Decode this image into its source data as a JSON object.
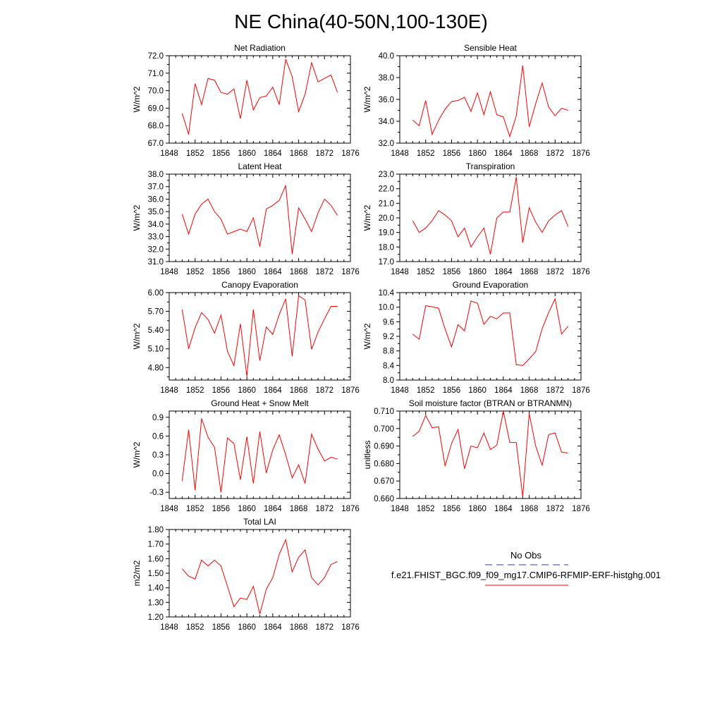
{
  "figure_title": "NE China(40-50N,100-130E)",
  "legend": {
    "obs_label": "No Obs",
    "obs_color": "#3a3a9a",
    "model_label": "f.e21.FHIST_BGC.f09_f09_mg17.CMIP6-RFMIP-ERF-histghg.001",
    "model_color": "#ff0000"
  },
  "chart_data": [
    {
      "type": "line",
      "title": "Net Radiation",
      "ylabel": "W/m^2",
      "xlim": [
        1848,
        1876
      ],
      "ylim": [
        67.0,
        72.0
      ],
      "xticks": [
        1848,
        1852,
        1856,
        1860,
        1864,
        1868,
        1872,
        1876
      ],
      "yticks": [
        "67.0",
        "68.0",
        "69.0",
        "70.0",
        "71.0",
        "72.0"
      ],
      "x": [
        1850,
        1851,
        1852,
        1853,
        1854,
        1855,
        1856,
        1857,
        1858,
        1859,
        1860,
        1861,
        1862,
        1863,
        1864,
        1865,
        1866,
        1867,
        1868,
        1869,
        1870,
        1871,
        1872,
        1873,
        1874
      ],
      "series": [
        {
          "name": "f.e21.FHIST_BGC.f09_f09_mg17.CMIP6-RFMIP-ERF-histghg.001",
          "values": [
            68.7,
            67.5,
            70.4,
            69.2,
            70.7,
            70.6,
            69.9,
            69.8,
            70.1,
            68.4,
            70.6,
            68.9,
            69.6,
            69.7,
            70.2,
            69.2,
            71.8,
            70.8,
            68.8,
            69.8,
            71.6,
            70.5,
            70.7,
            70.9,
            69.9
          ]
        }
      ]
    },
    {
      "type": "line",
      "title": "Sensible Heat",
      "ylabel": "W/m^2",
      "xlim": [
        1848,
        1876
      ],
      "ylim": [
        32.0,
        40.0
      ],
      "xticks": [
        1848,
        1852,
        1856,
        1860,
        1864,
        1868,
        1872,
        1876
      ],
      "yticks": [
        "32.0",
        "34.0",
        "36.0",
        "38.0",
        "40.0"
      ],
      "x": [
        1850,
        1851,
        1852,
        1853,
        1854,
        1855,
        1856,
        1857,
        1858,
        1859,
        1860,
        1861,
        1862,
        1863,
        1864,
        1865,
        1866,
        1867,
        1868,
        1869,
        1870,
        1871,
        1872,
        1873,
        1874
      ],
      "series": [
        {
          "name": "f.e21.FHIST_BGC.f09_f09_mg17.CMIP6-RFMIP-ERF-histghg.001",
          "values": [
            34.1,
            33.6,
            35.9,
            32.8,
            34.1,
            35.1,
            35.8,
            35.9,
            36.2,
            34.9,
            36.6,
            34.6,
            36.7,
            34.6,
            34.4,
            32.6,
            34.5,
            39.1,
            33.5,
            35.6,
            37.5,
            35.3,
            34.5,
            35.2,
            35.0
          ]
        }
      ]
    },
    {
      "type": "line",
      "title": "Latent Heat",
      "ylabel": "W/m^2",
      "xlim": [
        1848,
        1876
      ],
      "ylim": [
        31.0,
        38.0
      ],
      "xticks": [
        1848,
        1852,
        1856,
        1860,
        1864,
        1868,
        1872,
        1876
      ],
      "yticks": [
        "31.0",
        "32.0",
        "33.0",
        "34.0",
        "35.0",
        "36.0",
        "37.0",
        "38.0"
      ],
      "x": [
        1850,
        1851,
        1852,
        1853,
        1854,
        1855,
        1856,
        1857,
        1858,
        1859,
        1860,
        1861,
        1862,
        1863,
        1864,
        1865,
        1866,
        1867,
        1868,
        1869,
        1870,
        1871,
        1872,
        1873,
        1874
      ],
      "series": [
        {
          "name": "f.e21.FHIST_BGC.f09_f09_mg17.CMIP6-RFMIP-ERF-histghg.001",
          "values": [
            34.8,
            33.2,
            34.8,
            35.6,
            36.0,
            35.0,
            34.4,
            33.2,
            33.4,
            33.6,
            33.4,
            34.5,
            32.2,
            35.2,
            35.5,
            35.9,
            37.1,
            31.6,
            35.3,
            34.4,
            33.4,
            34.9,
            36.0,
            35.5,
            34.7
          ]
        }
      ]
    },
    {
      "type": "line",
      "title": "Transpiration",
      "ylabel": "W/m^2",
      "xlim": [
        1848,
        1876
      ],
      "ylim": [
        17.0,
        23.0
      ],
      "xticks": [
        1848,
        1852,
        1856,
        1860,
        1864,
        1868,
        1872,
        1876
      ],
      "yticks": [
        "17.0",
        "18.0",
        "19.0",
        "20.0",
        "21.0",
        "22.0",
        "23.0"
      ],
      "x": [
        1850,
        1851,
        1852,
        1853,
        1854,
        1855,
        1856,
        1857,
        1858,
        1859,
        1860,
        1861,
        1862,
        1863,
        1864,
        1865,
        1866,
        1867,
        1868,
        1869,
        1870,
        1871,
        1872,
        1873,
        1874
      ],
      "series": [
        {
          "name": "f.e21.FHIST_BGC.f09_f09_mg17.CMIP6-RFMIP-ERF-histghg.001",
          "values": [
            19.8,
            19.0,
            19.3,
            19.8,
            20.5,
            20.2,
            19.8,
            18.7,
            19.3,
            18.0,
            18.7,
            19.3,
            17.5,
            20.0,
            20.4,
            20.4,
            22.8,
            18.3,
            20.7,
            19.7,
            19.0,
            19.8,
            20.2,
            20.5,
            19.4
          ]
        }
      ]
    },
    {
      "type": "line",
      "title": "Canopy Evaporation",
      "ylabel": "W/m^2",
      "xlim": [
        1848,
        1876
      ],
      "ylim": [
        4.6,
        6.0
      ],
      "xticks": [
        1848,
        1852,
        1856,
        1860,
        1864,
        1868,
        1872,
        1876
      ],
      "yticks": [
        "4.80",
        "5.10",
        "5.40",
        "5.70",
        "6.00"
      ],
      "x": [
        1850,
        1851,
        1852,
        1853,
        1854,
        1855,
        1856,
        1857,
        1858,
        1859,
        1860,
        1861,
        1862,
        1863,
        1864,
        1865,
        1866,
        1867,
        1868,
        1869,
        1870,
        1871,
        1872,
        1873,
        1874
      ],
      "series": [
        {
          "name": "f.e21.FHIST_BGC.f09_f09_mg17.CMIP6-RFMIP-ERF-histghg.001",
          "values": [
            5.73,
            5.1,
            5.44,
            5.68,
            5.57,
            5.35,
            5.64,
            5.06,
            4.83,
            5.5,
            4.66,
            5.73,
            4.91,
            5.45,
            5.33,
            5.65,
            5.9,
            4.98,
            5.95,
            5.88,
            5.09,
            5.37,
            5.58,
            5.78,
            5.78
          ]
        }
      ]
    },
    {
      "type": "line",
      "title": "Ground Evaporation",
      "ylabel": "W/m^2",
      "xlim": [
        1848,
        1876
      ],
      "ylim": [
        8.0,
        10.4
      ],
      "xticks": [
        1848,
        1852,
        1856,
        1860,
        1864,
        1868,
        1872,
        1876
      ],
      "yticks": [
        "8.0",
        "8.4",
        "8.8",
        "9.2",
        "9.6",
        "10.0",
        "10.4"
      ],
      "x": [
        1850,
        1851,
        1852,
        1853,
        1854,
        1855,
        1856,
        1857,
        1858,
        1859,
        1860,
        1861,
        1862,
        1863,
        1864,
        1865,
        1866,
        1867,
        1868,
        1869,
        1870,
        1871,
        1872,
        1873,
        1874
      ],
      "series": [
        {
          "name": "f.e21.FHIST_BGC.f09_f09_mg17.CMIP6-RFMIP-ERF-histghg.001",
          "values": [
            9.26,
            9.12,
            10.04,
            10.01,
            9.97,
            9.4,
            8.91,
            9.52,
            9.35,
            10.17,
            10.11,
            9.53,
            9.75,
            9.68,
            9.84,
            9.84,
            8.42,
            8.4,
            8.58,
            8.78,
            9.41,
            9.85,
            10.23,
            9.26,
            9.48
          ]
        }
      ]
    },
    {
      "type": "line",
      "title": "Ground Heat + Snow Melt",
      "ylabel": "W/m^2",
      "xlim": [
        1848,
        1876
      ],
      "ylim": [
        -0.4,
        1.0
      ],
      "xticks": [
        1848,
        1852,
        1856,
        1860,
        1864,
        1868,
        1872,
        1876
      ],
      "yticks": [
        "-0.3",
        "0.0",
        "0.3",
        "0.6",
        "0.9"
      ],
      "x": [
        1850,
        1851,
        1852,
        1853,
        1854,
        1855,
        1856,
        1857,
        1858,
        1859,
        1860,
        1861,
        1862,
        1863,
        1864,
        1865,
        1866,
        1867,
        1868,
        1869,
        1870,
        1871,
        1872,
        1873,
        1874
      ],
      "series": [
        {
          "name": "f.e21.FHIST_BGC.f09_f09_mg17.CMIP6-RFMIP-ERF-histghg.001",
          "values": [
            -0.12,
            0.7,
            -0.27,
            0.88,
            0.58,
            0.42,
            -0.3,
            0.57,
            0.48,
            -0.1,
            0.59,
            -0.16,
            0.67,
            0.01,
            0.38,
            0.62,
            0.3,
            -0.07,
            0.14,
            -0.16,
            0.63,
            0.39,
            0.2,
            0.26,
            0.23
          ]
        }
      ]
    },
    {
      "type": "line",
      "title": "Soil moisture factor (BTRAN or BTRANMN)",
      "ylabel": "unitless",
      "xlim": [
        1848,
        1876
      ],
      "ylim": [
        0.66,
        0.71
      ],
      "xticks": [
        1848,
        1852,
        1856,
        1860,
        1864,
        1868,
        1872,
        1876
      ],
      "yticks": [
        "0.660",
        "0.670",
        "0.680",
        "0.690",
        "0.700",
        "0.710"
      ],
      "x": [
        1850,
        1851,
        1852,
        1853,
        1854,
        1855,
        1856,
        1857,
        1858,
        1859,
        1860,
        1861,
        1862,
        1863,
        1864,
        1865,
        1866,
        1867,
        1868,
        1869,
        1870,
        1871,
        1872,
        1873,
        1874
      ],
      "series": [
        {
          "name": "f.e21.FHIST_BGC.f09_f09_mg17.CMIP6-RFMIP-ERF-histghg.001",
          "values": [
            0.6955,
            0.6985,
            0.7075,
            0.7005,
            0.701,
            0.6785,
            0.6915,
            0.6995,
            0.677,
            0.69,
            0.689,
            0.6975,
            0.688,
            0.6905,
            0.71,
            0.692,
            0.692,
            0.661,
            0.7085,
            0.69,
            0.679,
            0.6965,
            0.6975,
            0.6865,
            0.686
          ]
        }
      ]
    },
    {
      "type": "line",
      "title": "Total LAI",
      "ylabel": "m2/m2",
      "xlim": [
        1848,
        1876
      ],
      "ylim": [
        1.2,
        1.8
      ],
      "xticks": [
        1848,
        1852,
        1856,
        1860,
        1864,
        1868,
        1872,
        1876
      ],
      "yticks": [
        "1.20",
        "1.30",
        "1.40",
        "1.50",
        "1.60",
        "1.70",
        "1.80"
      ],
      "x": [
        1850,
        1851,
        1852,
        1853,
        1854,
        1855,
        1856,
        1857,
        1858,
        1859,
        1860,
        1861,
        1862,
        1863,
        1864,
        1865,
        1866,
        1867,
        1868,
        1869,
        1870,
        1871,
        1872,
        1873,
        1874
      ],
      "series": [
        {
          "name": "f.e21.FHIST_BGC.f09_f09_mg17.CMIP6-RFMIP-ERF-histghg.001",
          "values": [
            1.53,
            1.48,
            1.46,
            1.59,
            1.55,
            1.59,
            1.55,
            1.41,
            1.27,
            1.33,
            1.32,
            1.41,
            1.22,
            1.39,
            1.47,
            1.63,
            1.73,
            1.51,
            1.61,
            1.66,
            1.47,
            1.42,
            1.47,
            1.56,
            1.58
          ]
        }
      ]
    }
  ]
}
